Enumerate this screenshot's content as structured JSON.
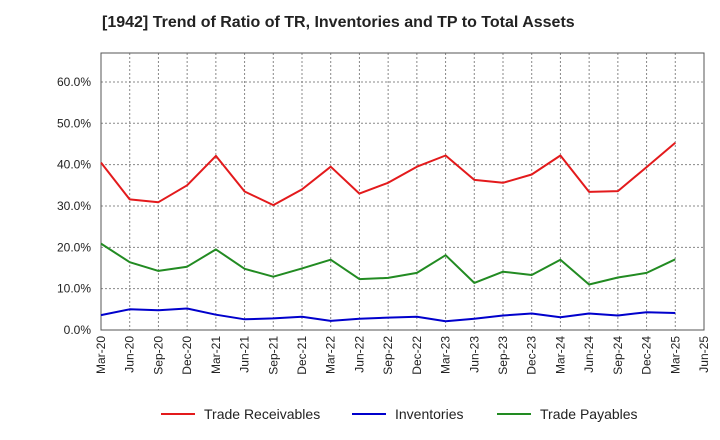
{
  "chart_data": {
    "type": "line",
    "title": "[1942]  Trend of Ratio of TR, Inventories and TP to Total Assets",
    "xlabel": "",
    "ylabel": "",
    "ylim": [
      0,
      67
    ],
    "yticks": [
      0,
      10,
      20,
      30,
      40,
      50,
      60
    ],
    "ytick_labels": [
      "0.0%",
      "10.0%",
      "20.0%",
      "30.0%",
      "40.0%",
      "50.0%",
      "60.0%"
    ],
    "xtick_labels": [
      "Mar-20",
      "Jun-20",
      "Sep-20",
      "Dec-20",
      "Mar-21",
      "Jun-21",
      "Sep-21",
      "Dec-21",
      "Mar-22",
      "Jun-22",
      "Sep-22",
      "Dec-22",
      "Mar-23",
      "Jun-23",
      "Sep-23",
      "Dec-23",
      "Mar-24",
      "Jun-24",
      "Sep-24",
      "Dec-24",
      "Mar-25",
      "Jun-25"
    ],
    "x": [
      "Mar-20",
      "Jun-20",
      "Sep-20",
      "Dec-20",
      "Mar-21",
      "Jun-21",
      "Sep-21",
      "Dec-21",
      "Mar-22",
      "Jun-22",
      "Sep-22",
      "Dec-22",
      "Mar-23",
      "Jun-23",
      "Sep-23",
      "Dec-23",
      "Mar-24",
      "Jun-24",
      "Sep-24",
      "Dec-24",
      "Mar-25"
    ],
    "grid": true,
    "legend_position": "bottom",
    "series": [
      {
        "name": "Trade Receivables",
        "color": "#e31a1c",
        "values": [
          40.5,
          31.6,
          30.9,
          35.0,
          42.1,
          33.5,
          30.2,
          34.0,
          39.5,
          33.0,
          35.6,
          39.5,
          42.2,
          36.3,
          35.6,
          37.6,
          42.2,
          33.4,
          33.6,
          39.4,
          45.3
        ]
      },
      {
        "name": "Inventories",
        "color": "#0000cc",
        "values": [
          3.6,
          5.0,
          4.8,
          5.2,
          3.7,
          2.6,
          2.8,
          3.2,
          2.2,
          2.7,
          3.0,
          3.2,
          2.1,
          2.7,
          3.5,
          4.0,
          3.1,
          4.0,
          3.5,
          4.3,
          4.1
        ]
      },
      {
        "name": "Trade Payables",
        "color": "#228b22",
        "values": [
          20.9,
          16.4,
          14.3,
          15.3,
          19.5,
          14.8,
          12.9,
          14.9,
          17.0,
          12.3,
          12.6,
          13.8,
          18.1,
          11.4,
          14.1,
          13.3,
          17.0,
          11.0,
          12.7,
          13.8,
          17.1
        ]
      }
    ]
  }
}
